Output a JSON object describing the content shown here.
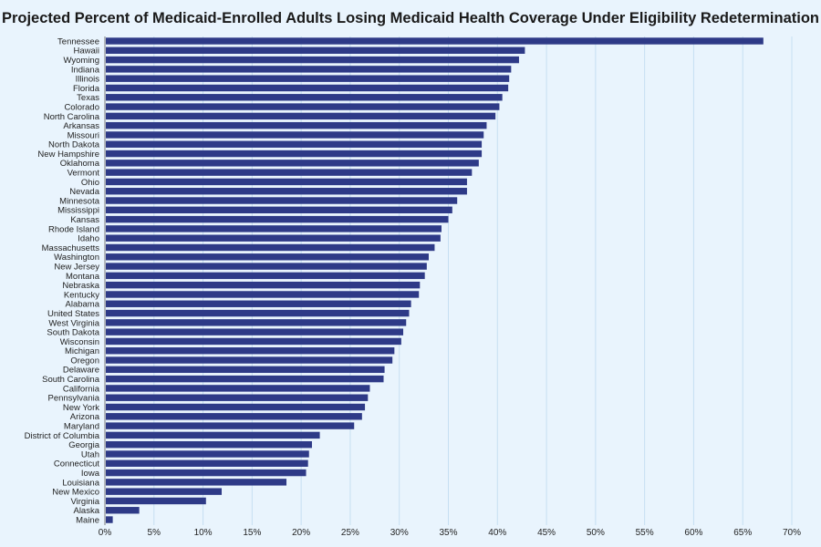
{
  "chart_data": {
    "type": "bar",
    "orientation": "horizontal",
    "title": "Projected Percent of Medicaid-Enrolled Adults Losing Medicaid Health Coverage Under Eligibility Redetermination",
    "xlabel": "",
    "ylabel": "",
    "xlim": [
      0,
      70
    ],
    "ticks": [
      0,
      5,
      10,
      15,
      20,
      25,
      30,
      35,
      40,
      45,
      50,
      55,
      60,
      65,
      70
    ],
    "tick_labels": [
      "0%",
      "5%",
      "10%",
      "15%",
      "20%",
      "25%",
      "30%",
      "35%",
      "40%",
      "45%",
      "50%",
      "55%",
      "60%",
      "65%",
      "70%"
    ],
    "grid": true,
    "bar_color": "#2e3a87",
    "background_color": "#e9f4fd",
    "categories": [
      "Tennessee",
      "Hawaii",
      "Wyoming",
      "Indiana",
      "Illinois",
      "Florida",
      "Texas",
      "Colorado",
      "North Carolina",
      "Arkansas",
      "Missouri",
      "North Dakota",
      "New Hampshire",
      "Oklahoma",
      "Vermont",
      "Ohio",
      "Nevada",
      "Minnesota",
      "Mississippi",
      "Kansas",
      "Rhode Island",
      "Idaho",
      "Massachusetts",
      "Washington",
      "New Jersey",
      "Montana",
      "Nebraska",
      "Kentucky",
      "Alabama",
      "United States",
      "West Virginia",
      "South Dakota",
      "Wisconsin",
      "Michigan",
      "Oregon",
      "Delaware",
      "South Carolina",
      "California",
      "Pennsylvania",
      "New York",
      "Arizona",
      "Maryland",
      "District of Columbia",
      "Georgia",
      "Utah",
      "Connecticut",
      "Iowa",
      "Louisiana",
      "New Mexico",
      "Virginia",
      "Alaska",
      "Maine"
    ],
    "values": [
      67.1,
      42.8,
      42.2,
      41.4,
      41.2,
      41.1,
      40.5,
      40.2,
      39.8,
      38.9,
      38.6,
      38.4,
      38.4,
      38.1,
      37.4,
      36.9,
      36.9,
      35.9,
      35.4,
      35.0,
      34.3,
      34.2,
      33.6,
      33.0,
      32.8,
      32.6,
      32.1,
      32.0,
      31.2,
      31.0,
      30.7,
      30.4,
      30.2,
      29.5,
      29.3,
      28.5,
      28.4,
      27.0,
      26.8,
      26.5,
      26.2,
      25.4,
      21.9,
      21.1,
      20.8,
      20.7,
      20.5,
      18.5,
      11.9,
      10.3,
      3.5,
      0.8
    ]
  }
}
